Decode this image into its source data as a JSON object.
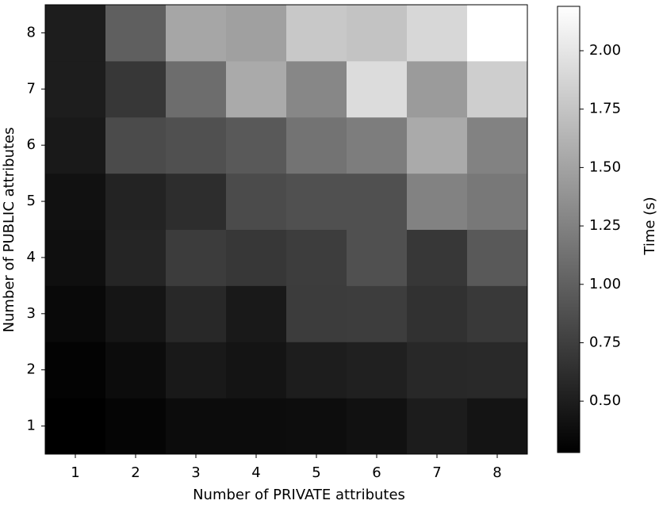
{
  "chart_data": {
    "type": "heatmap",
    "xlabel": "Number of PRIVATE attributes",
    "ylabel": "Number of PUBLIC attributes",
    "x_categories": [
      "1",
      "2",
      "3",
      "4",
      "5",
      "6",
      "7",
      "8"
    ],
    "y_categories": [
      "1",
      "2",
      "3",
      "4",
      "5",
      "6",
      "7",
      "8"
    ],
    "values": [
      [
        0.28,
        0.32,
        0.37,
        0.37,
        0.38,
        0.41,
        0.49,
        0.43
      ],
      [
        0.3,
        0.37,
        0.47,
        0.43,
        0.5,
        0.52,
        0.58,
        0.59
      ],
      [
        0.35,
        0.44,
        0.58,
        0.47,
        0.73,
        0.74,
        0.65,
        0.71
      ],
      [
        0.39,
        0.56,
        0.73,
        0.69,
        0.74,
        0.88,
        0.69,
        0.95
      ],
      [
        0.41,
        0.54,
        0.62,
        0.84,
        0.88,
        0.88,
        1.25,
        1.18
      ],
      [
        0.47,
        0.84,
        0.88,
        0.95,
        1.14,
        1.22,
        1.55,
        1.25
      ],
      [
        0.5,
        0.69,
        1.1,
        1.55,
        1.29,
        1.93,
        1.44,
        1.82
      ],
      [
        0.5,
        0.99,
        1.52,
        1.48,
        1.78,
        1.74,
        1.89,
        2.19
      ]
    ],
    "colormap": "gray",
    "colorbar_label": "Time (s)",
    "clim": [
      0.28,
      2.19
    ],
    "cticks": [
      {
        "value": 0.5,
        "label": "0.50"
      },
      {
        "value": 0.75,
        "label": "0.75"
      },
      {
        "value": 1.0,
        "label": "1.00"
      },
      {
        "value": 1.25,
        "label": "1.25"
      },
      {
        "value": 1.5,
        "label": "1.50"
      },
      {
        "value": 1.75,
        "label": "1.75"
      },
      {
        "value": 2.0,
        "label": "2.00"
      }
    ]
  }
}
